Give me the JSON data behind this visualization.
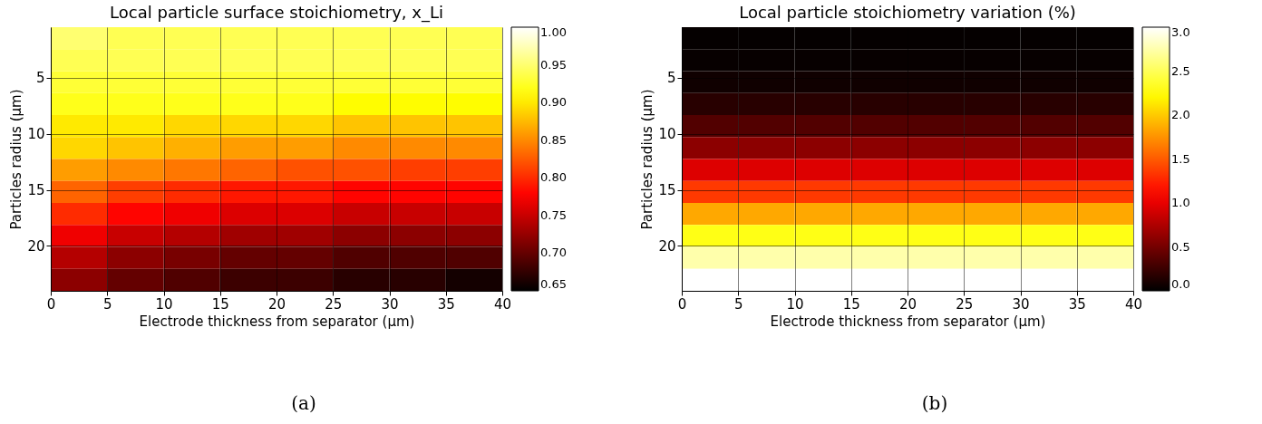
{
  "chart_data": [
    {
      "type": "heatmap",
      "title": "Local particle surface stoichiometry, x_Li",
      "xlabel": "Electrode thickness from separator (μm)",
      "ylabel": "Particles radius (μm)",
      "x": [
        2.5,
        7.5,
        12.5,
        17.5,
        22.5,
        27.5,
        32.5,
        37.5
      ],
      "cells": [
        [
          0.95,
          0.94,
          0.94,
          0.94,
          0.94,
          0.94,
          0.94,
          0.94
        ],
        [
          0.94,
          0.94,
          0.94,
          0.94,
          0.94,
          0.94,
          0.94,
          0.94
        ],
        [
          0.93,
          0.93,
          0.93,
          0.93,
          0.93,
          0.93,
          0.93,
          0.93
        ],
        [
          0.92,
          0.92,
          0.92,
          0.92,
          0.92,
          0.91,
          0.91,
          0.91
        ],
        [
          0.9,
          0.9,
          0.89,
          0.89,
          0.89,
          0.88,
          0.88,
          0.88
        ],
        [
          0.89,
          0.88,
          0.87,
          0.86,
          0.86,
          0.85,
          0.85,
          0.85
        ],
        [
          0.86,
          0.85,
          0.84,
          0.83,
          0.82,
          0.82,
          0.81,
          0.81
        ],
        [
          0.83,
          0.81,
          0.8,
          0.79,
          0.79,
          0.78,
          0.78,
          0.78
        ],
        [
          0.8,
          0.78,
          0.77,
          0.76,
          0.76,
          0.75,
          0.75,
          0.75
        ],
        [
          0.77,
          0.75,
          0.74,
          0.73,
          0.73,
          0.72,
          0.72,
          0.72
        ],
        [
          0.74,
          0.72,
          0.71,
          0.7,
          0.7,
          0.69,
          0.69,
          0.69
        ],
        [
          0.72,
          0.7,
          0.69,
          0.68,
          0.68,
          0.67,
          0.67,
          0.66
        ]
      ],
      "xlim": [
        0,
        40
      ],
      "xticks": [
        0,
        5,
        10,
        15,
        20,
        25,
        30,
        35,
        40
      ],
      "ylim": [
        24,
        0.5
      ],
      "yticks": [
        5,
        10,
        15,
        20
      ],
      "clim": [
        0.65,
        1.0
      ],
      "cticks": [
        {
          "value": 0.65,
          "label": "0.65"
        },
        {
          "value": 0.7,
          "label": "0.70"
        },
        {
          "value": 0.75,
          "label": "0.75"
        },
        {
          "value": 0.8,
          "label": "0.80"
        },
        {
          "value": 0.85,
          "label": "0.85"
        },
        {
          "value": 0.9,
          "label": "0.90"
        },
        {
          "value": 0.95,
          "label": "0.95"
        },
        {
          "value": 1.0,
          "label": "1.00"
        }
      ],
      "grid": true,
      "annotations": [
        "(a)"
      ]
    },
    {
      "type": "heatmap",
      "title": "Local particle stoichiometry variation (%)",
      "xlabel": "Electrode thickness from separator (μm)",
      "ylabel": "Particles radius (μm)",
      "x": [
        2.5,
        7.5,
        12.5,
        17.5,
        22.5,
        27.5,
        32.5,
        37.5
      ],
      "cells": [
        [
          0.02,
          0.02,
          0.02,
          0.02,
          0.02,
          0.02,
          0.02,
          0.02
        ],
        [
          0.03,
          0.03,
          0.03,
          0.03,
          0.03,
          0.03,
          0.03,
          0.03
        ],
        [
          0.07,
          0.07,
          0.07,
          0.07,
          0.07,
          0.07,
          0.07,
          0.07
        ],
        [
          0.17,
          0.17,
          0.17,
          0.17,
          0.17,
          0.17,
          0.17,
          0.17
        ],
        [
          0.35,
          0.35,
          0.35,
          0.35,
          0.35,
          0.35,
          0.35,
          0.35
        ],
        [
          0.6,
          0.6,
          0.6,
          0.6,
          0.6,
          0.6,
          0.6,
          0.6
        ],
        [
          0.95,
          0.95,
          0.95,
          0.95,
          0.95,
          0.95,
          0.95,
          0.95
        ],
        [
          1.35,
          1.35,
          1.35,
          1.35,
          1.35,
          1.35,
          1.35,
          1.35
        ],
        [
          1.85,
          1.85,
          1.85,
          1.85,
          1.85,
          1.85,
          1.85,
          1.85
        ],
        [
          2.3,
          2.3,
          2.3,
          2.3,
          2.3,
          2.3,
          2.3,
          2.3
        ],
        [
          2.75,
          2.75,
          2.75,
          2.75,
          2.75,
          2.75,
          2.75,
          2.75
        ],
        [
          3.0,
          3.0,
          3.0,
          3.0,
          3.0,
          3.0,
          3.0,
          3.0
        ]
      ],
      "xlim": [
        0,
        40
      ],
      "xticks": [
        0,
        5,
        10,
        15,
        20,
        25,
        30,
        35,
        40
      ],
      "ylim": [
        24,
        0.5
      ],
      "yticks": [
        5,
        10,
        15,
        20
      ],
      "clim": [
        0.0,
        3.0
      ],
      "cticks": [
        {
          "value": 0,
          "label": "0.0"
        },
        {
          "value": 0.5,
          "label": "0.5"
        },
        {
          "value": 1,
          "label": "1.0"
        },
        {
          "value": 1.5,
          "label": "1.5"
        },
        {
          "value": 2,
          "label": "2.0"
        },
        {
          "value": 2.5,
          "label": "2.5"
        },
        {
          "value": 3,
          "label": "3.0"
        }
      ],
      "grid": true,
      "annotations": [
        "(b)"
      ]
    }
  ]
}
